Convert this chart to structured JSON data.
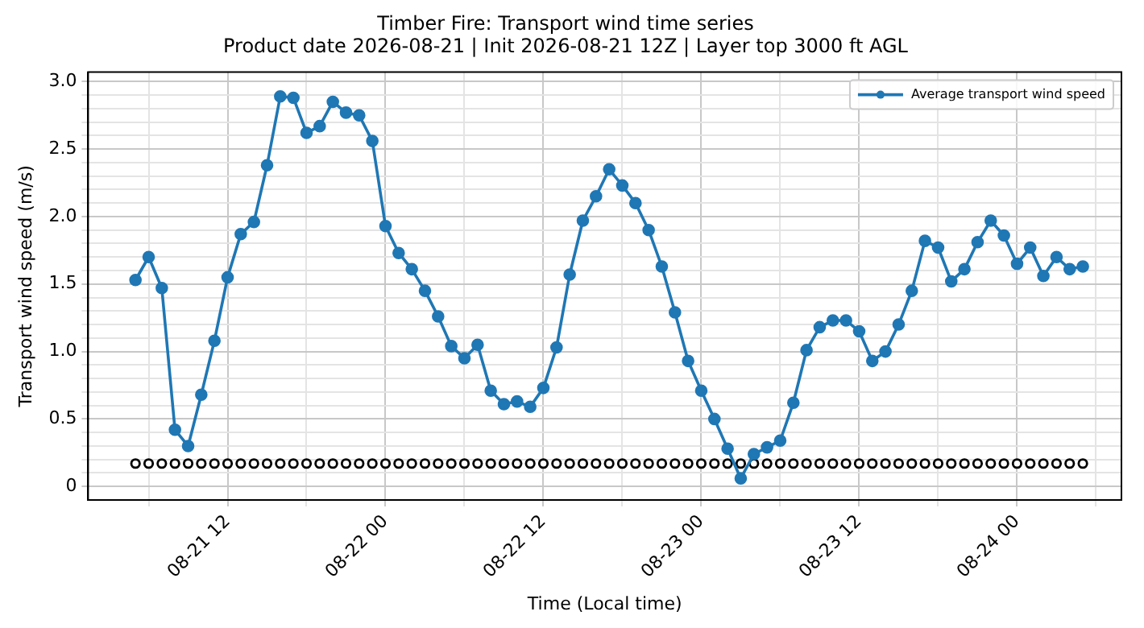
{
  "chart_data": {
    "type": "line",
    "title": "Timber Fire: Transport wind time series",
    "subtitle": "Product date 2026-08-21 | Init 2026-08-21 12Z | Layer top 3000 ft AGL",
    "xlabel": "Time (Local time)",
    "ylabel": "Transport wind speed (m/s)",
    "x": [
      "2026-08-21T05:00",
      "2026-08-21T06:00",
      "2026-08-21T07:00",
      "2026-08-21T08:00",
      "2026-08-21T09:00",
      "2026-08-21T10:00",
      "2026-08-21T11:00",
      "2026-08-21T12:00",
      "2026-08-21T13:00",
      "2026-08-21T14:00",
      "2026-08-21T15:00",
      "2026-08-21T16:00",
      "2026-08-21T17:00",
      "2026-08-21T18:00",
      "2026-08-21T19:00",
      "2026-08-21T20:00",
      "2026-08-21T21:00",
      "2026-08-21T22:00",
      "2026-08-21T23:00",
      "2026-08-22T00:00",
      "2026-08-22T01:00",
      "2026-08-22T02:00",
      "2026-08-22T03:00",
      "2026-08-22T04:00",
      "2026-08-22T05:00",
      "2026-08-22T06:00",
      "2026-08-22T07:00",
      "2026-08-22T08:00",
      "2026-08-22T09:00",
      "2026-08-22T10:00",
      "2026-08-22T11:00",
      "2026-08-22T12:00",
      "2026-08-22T13:00",
      "2026-08-22T14:00",
      "2026-08-22T15:00",
      "2026-08-22T16:00",
      "2026-08-22T17:00",
      "2026-08-22T18:00",
      "2026-08-22T19:00",
      "2026-08-22T20:00",
      "2026-08-22T21:00",
      "2026-08-22T22:00",
      "2026-08-22T23:00",
      "2026-08-23T00:00",
      "2026-08-23T01:00",
      "2026-08-23T02:00",
      "2026-08-23T03:00",
      "2026-08-23T04:00",
      "2026-08-23T05:00",
      "2026-08-23T06:00",
      "2026-08-23T07:00",
      "2026-08-23T08:00",
      "2026-08-23T09:00",
      "2026-08-23T10:00",
      "2026-08-23T11:00",
      "2026-08-23T12:00",
      "2026-08-23T13:00",
      "2026-08-23T14:00",
      "2026-08-23T15:00",
      "2026-08-23T16:00",
      "2026-08-23T17:00",
      "2026-08-23T18:00",
      "2026-08-23T19:00",
      "2026-08-23T20:00",
      "2026-08-23T21:00",
      "2026-08-23T22:00",
      "2026-08-23T23:00",
      "2026-08-24T00:00",
      "2026-08-24T01:00",
      "2026-08-24T02:00",
      "2026-08-24T03:00",
      "2026-08-24T04:00",
      "2026-08-24T05:00"
    ],
    "series": [
      {
        "name": "Average transport wind speed",
        "color": "#1f77b4",
        "marker": "circle",
        "values": [
          1.53,
          1.7,
          1.47,
          0.42,
          0.3,
          0.68,
          1.08,
          1.55,
          1.87,
          1.96,
          2.38,
          2.89,
          2.88,
          2.62,
          2.67,
          2.85,
          2.77,
          2.75,
          2.56,
          1.93,
          1.73,
          1.61,
          1.45,
          1.26,
          1.04,
          0.95,
          1.05,
          0.71,
          0.61,
          0.63,
          0.59,
          0.73,
          1.03,
          1.57,
          1.97,
          2.15,
          2.35,
          2.23,
          2.1,
          1.9,
          1.63,
          1.29,
          0.93,
          0.71,
          0.5,
          0.28,
          0.06,
          0.24,
          0.29,
          0.34,
          0.62,
          1.01,
          1.18,
          1.23,
          1.23,
          1.15,
          0.93,
          1.0,
          1.2,
          1.45,
          1.82,
          1.77,
          1.52,
          1.61,
          1.81,
          1.97,
          1.86,
          1.65,
          1.77,
          1.56,
          1.7,
          1.61,
          1.63
        ]
      },
      {
        "type": "scatter",
        "color": "#000000",
        "marker": "circle",
        "values": [
          0.17,
          0.17,
          0.17,
          0.17,
          0.17,
          0.17,
          0.17,
          0.17,
          0.17,
          0.17,
          0.17,
          0.17,
          0.17,
          0.17,
          0.17,
          0.17,
          0.17,
          0.17,
          0.17,
          0.17,
          0.17,
          0.17,
          0.17,
          0.17,
          0.17,
          0.17,
          0.17,
          0.17,
          0.17,
          0.17,
          0.17,
          0.17,
          0.17,
          0.17,
          0.17,
          0.17,
          0.17,
          0.17,
          0.17,
          0.17,
          0.17,
          0.17,
          0.17,
          0.17,
          0.17,
          0.17,
          0.17,
          0.17,
          0.17,
          0.17,
          0.17,
          0.17,
          0.17,
          0.17,
          0.17,
          0.17,
          0.17,
          0.17,
          0.17,
          0.17,
          0.17,
          0.17,
          0.17,
          0.17,
          0.17,
          0.17,
          0.17,
          0.17,
          0.17,
          0.17,
          0.17,
          0.17,
          0.17
        ]
      }
    ],
    "xlim": [
      "2026-08-21T01:24",
      "2026-08-24T07:56"
    ],
    "xticks": [
      {
        "value": "2026-08-21T06:00",
        "label": null
      },
      {
        "value": "2026-08-21T12:00",
        "label": "08-21 12"
      },
      {
        "value": "2026-08-21T18:00",
        "label": null
      },
      {
        "value": "2026-08-22T00:00",
        "label": "08-22 00"
      },
      {
        "value": "2026-08-22T06:00",
        "label": null
      },
      {
        "value": "2026-08-22T12:00",
        "label": "08-22 12"
      },
      {
        "value": "2026-08-22T18:00",
        "label": null
      },
      {
        "value": "2026-08-23T00:00",
        "label": "08-23 00"
      },
      {
        "value": "2026-08-23T06:00",
        "label": null
      },
      {
        "value": "2026-08-23T12:00",
        "label": "08-23 12"
      },
      {
        "value": "2026-08-23T18:00",
        "label": null
      },
      {
        "value": "2026-08-24T00:00",
        "label": "08-24 00"
      },
      {
        "value": "2026-08-24T06:00",
        "label": null
      }
    ],
    "ylim": [
      -0.1,
      3.07
    ],
    "yticks": [
      0,
      {
        "value": 0.1,
        "label": null
      },
      {
        "value": 0.2,
        "label": null
      },
      {
        "value": 0.3,
        "label": null
      },
      {
        "value": 0.4,
        "label": null
      },
      {
        "value": 0.5,
        "label": "0.5"
      },
      {
        "value": 0.6,
        "label": null
      },
      {
        "value": 0.7,
        "label": null
      },
      {
        "value": 0.8,
        "label": null
      },
      {
        "value": 0.9,
        "label": null
      },
      {
        "value": 1,
        "label": "1.0"
      },
      {
        "value": 1.1,
        "label": null
      },
      {
        "value": 1.2,
        "label": null
      },
      {
        "value": 1.3,
        "label": null
      },
      {
        "value": 1.4,
        "label": null
      },
      {
        "value": 1.5,
        "label": "1.5"
      },
      {
        "value": 1.6,
        "label": null
      },
      {
        "value": 1.7,
        "label": null
      },
      {
        "value": 1.8,
        "label": null
      },
      {
        "value": 1.9,
        "label": null
      },
      {
        "value": 2,
        "label": "2.0"
      },
      {
        "value": 2.1,
        "label": null
      },
      {
        "value": 2.2,
        "label": null
      },
      {
        "value": 2.3,
        "label": null
      },
      {
        "value": 2.4,
        "label": null
      },
      {
        "value": 2.5,
        "label": "2.5"
      },
      {
        "value": 2.6,
        "label": null
      },
      {
        "value": 2.7,
        "label": null
      },
      {
        "value": 2.8,
        "label": null
      },
      {
        "value": 2.9,
        "label": null
      },
      {
        "value": 3,
        "label": "3.0"
      }
    ],
    "grid": true,
    "legend": "top right",
    "line_style": "solid"
  }
}
